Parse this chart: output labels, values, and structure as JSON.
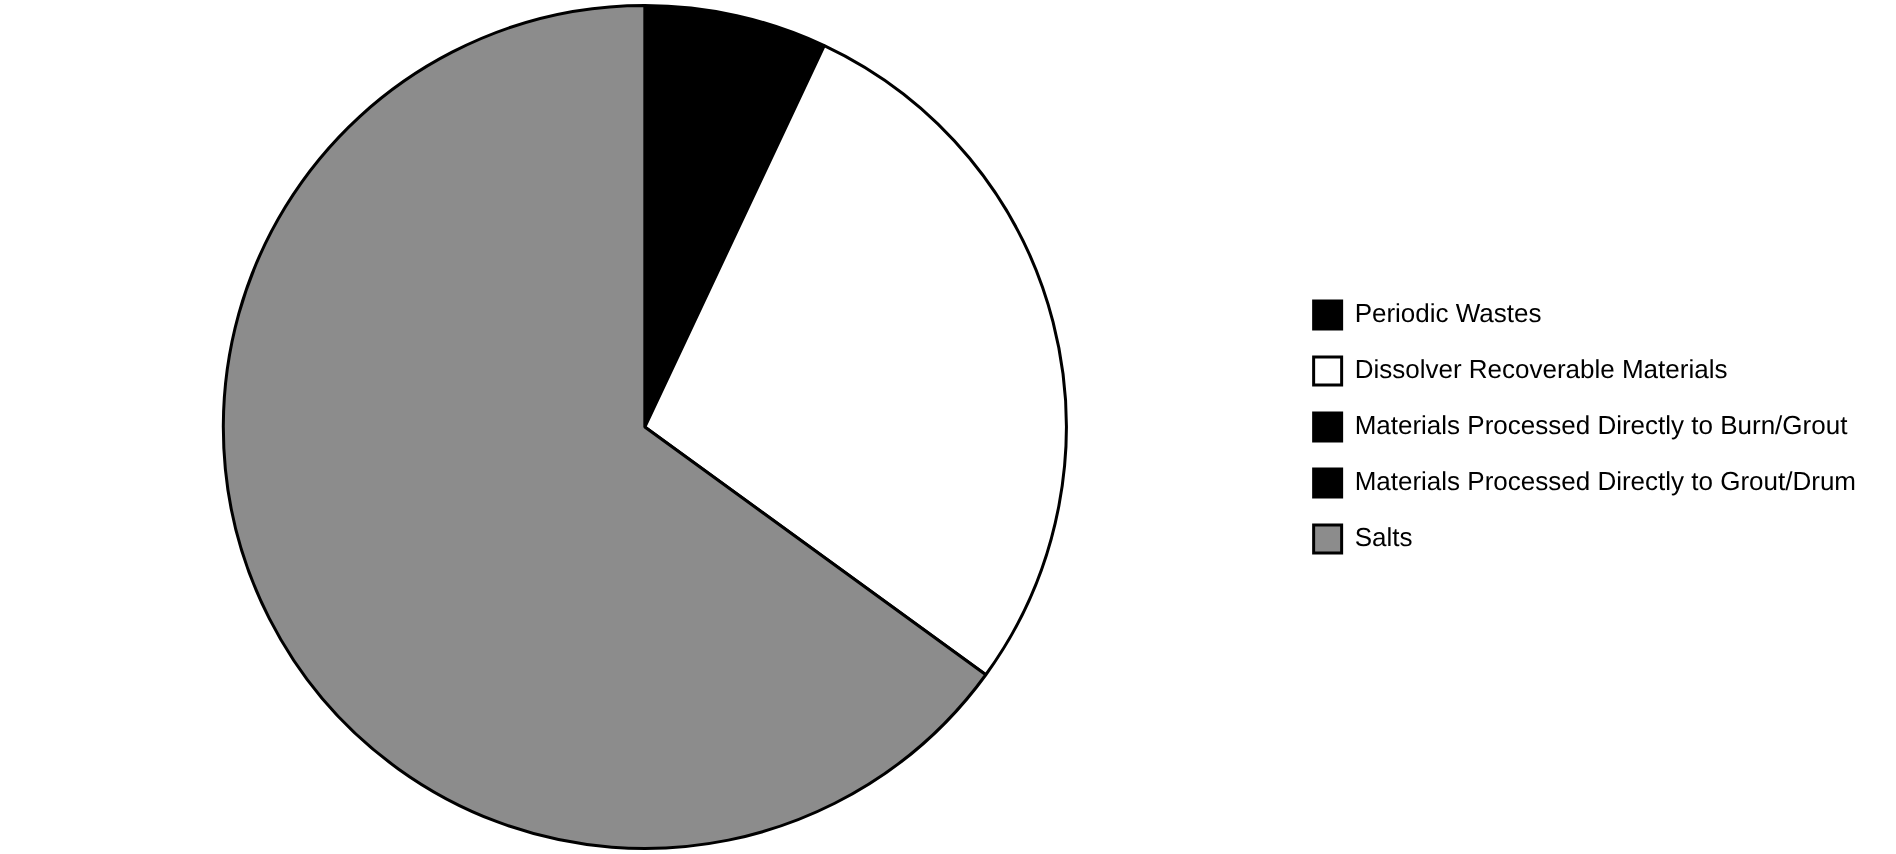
{
  "chart_data": {
    "type": "pie",
    "categories": [
      "Periodic Wastes",
      "Dissolver Recoverable Materials",
      "Materials Processed Directly to Burn/Grout",
      "Materials Processed Directly to Grout/Drum",
      "Salts"
    ],
    "values": [
      7,
      28,
      0,
      0,
      65
    ],
    "colors": [
      "#000000",
      "#ffffff",
      "#000000",
      "#000000",
      "#8c8c8c"
    ],
    "legend": "right"
  }
}
